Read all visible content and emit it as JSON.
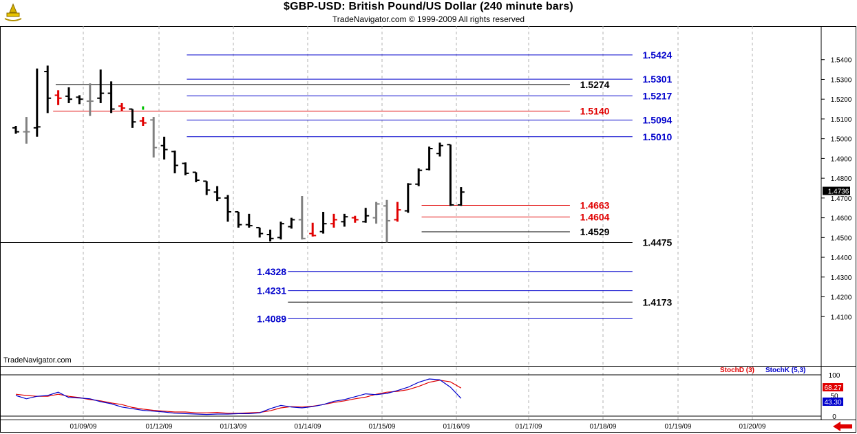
{
  "header": {
    "title": "$GBP-USD:  British Pound/US Dollar  (240 minute bars)",
    "subtitle": "TradeNavigator.com © 1999-2009 All rights reserved"
  },
  "watermark": "TradeNavigator.com",
  "chart_data": [
    {
      "type": "ohlc",
      "ylim": [
        1.403,
        1.55
      ],
      "y_ticks": [
        "1.5400",
        "1.5300",
        "1.5200",
        "1.5100",
        "1.5000",
        "1.4900",
        "1.4800",
        "1.4700",
        "1.4600",
        "1.4500",
        "1.4400",
        "1.4300",
        "1.4200",
        "1.4100"
      ],
      "y_tick_values": [
        1.54,
        1.53,
        1.52,
        1.51,
        1.5,
        1.49,
        1.48,
        1.47,
        1.46,
        1.45,
        1.44,
        1.43,
        1.42,
        1.41
      ],
      "x_labels": [
        "01/09/09",
        "01/12/09",
        "01/13/09",
        "01/14/09",
        "01/15/09",
        "01/16/09",
        "01/17/09",
        "01/18/09",
        "01/19/09",
        "01/20/09"
      ],
      "last_price": "1.4736",
      "colors": {
        "up_down": "#000000",
        "neutral": "#808080",
        "red": "#e00000",
        "green": "#00c000"
      },
      "bars": [
        {
          "o": 1.5055,
          "h": 1.5065,
          "l": 1.5025,
          "c": 1.5035,
          "color": "black"
        },
        {
          "o": 1.5035,
          "h": 1.511,
          "l": 1.4975,
          "c": 1.5035,
          "color": "gray"
        },
        {
          "o": 1.5055,
          "h": 1.5355,
          "l": 1.501,
          "c": 1.506,
          "color": "black"
        },
        {
          "o": 1.534,
          "h": 1.537,
          "l": 1.513,
          "c": 1.5205,
          "color": "black"
        },
        {
          "o": 1.522,
          "h": 1.5245,
          "l": 1.517,
          "c": 1.5205,
          "color": "red"
        },
        {
          "o": 1.5215,
          "h": 1.526,
          "l": 1.518,
          "c": 1.52,
          "color": "black"
        },
        {
          "o": 1.521,
          "h": 1.522,
          "l": 1.5175,
          "c": 1.52,
          "color": "black"
        },
        {
          "o": 1.519,
          "h": 1.528,
          "l": 1.5115,
          "c": 1.519,
          "color": "gray"
        },
        {
          "o": 1.5205,
          "h": 1.535,
          "l": 1.518,
          "c": 1.523,
          "color": "black"
        },
        {
          "o": 1.523,
          "h": 1.529,
          "l": 1.513,
          "c": 1.515,
          "color": "black"
        },
        {
          "o": 1.5165,
          "h": 1.518,
          "l": 1.514,
          "c": 1.5155,
          "color": "red"
        },
        {
          "o": 1.515,
          "h": 1.515,
          "l": 1.5055,
          "c": 1.5085,
          "color": "black"
        },
        {
          "o": 1.509,
          "h": 1.511,
          "l": 1.5065,
          "c": 1.508,
          "color": "red"
        },
        {
          "o": 1.5095,
          "h": 1.511,
          "l": 1.4905,
          "c": 1.4955,
          "color": "gray"
        },
        {
          "o": 1.4965,
          "h": 1.501,
          "l": 1.4895,
          "c": 1.4945,
          "color": "black"
        },
        {
          "o": 1.4935,
          "h": 1.494,
          "l": 1.4825,
          "c": 1.4865,
          "color": "black"
        },
        {
          "o": 1.4875,
          "h": 1.488,
          "l": 1.4815,
          "c": 1.4825,
          "color": "black"
        },
        {
          "o": 1.483,
          "h": 1.483,
          "l": 1.478,
          "c": 1.479,
          "color": "black"
        },
        {
          "o": 1.4785,
          "h": 1.4785,
          "l": 1.4715,
          "c": 1.474,
          "color": "black"
        },
        {
          "o": 1.473,
          "h": 1.476,
          "l": 1.4685,
          "c": 1.47,
          "color": "black"
        },
        {
          "o": 1.47,
          "h": 1.4715,
          "l": 1.458,
          "c": 1.463,
          "color": "black"
        },
        {
          "o": 1.463,
          "h": 1.463,
          "l": 1.455,
          "c": 1.4565,
          "color": "black"
        },
        {
          "o": 1.4565,
          "h": 1.462,
          "l": 1.455,
          "c": 1.456,
          "color": "black"
        },
        {
          "o": 1.455,
          "h": 1.455,
          "l": 1.45,
          "c": 1.452,
          "color": "black"
        },
        {
          "o": 1.4515,
          "h": 1.454,
          "l": 1.448,
          "c": 1.4495,
          "color": "black"
        },
        {
          "o": 1.45,
          "h": 1.458,
          "l": 1.449,
          "c": 1.457,
          "color": "black"
        },
        {
          "o": 1.4555,
          "h": 1.46,
          "l": 1.4545,
          "c": 1.459,
          "color": "black"
        },
        {
          "o": 1.459,
          "h": 1.471,
          "l": 1.449,
          "c": 1.4495,
          "color": "gray"
        },
        {
          "o": 1.452,
          "h": 1.4575,
          "l": 1.4505,
          "c": 1.451,
          "color": "red"
        },
        {
          "o": 1.453,
          "h": 1.463,
          "l": 1.452,
          "c": 1.457,
          "color": "black"
        },
        {
          "o": 1.457,
          "h": 1.462,
          "l": 1.455,
          "c": 1.459,
          "color": "red"
        },
        {
          "o": 1.458,
          "h": 1.462,
          "l": 1.4555,
          "c": 1.4605,
          "color": "black"
        },
        {
          "o": 1.46,
          "h": 1.461,
          "l": 1.4575,
          "c": 1.459,
          "color": "red"
        },
        {
          "o": 1.458,
          "h": 1.465,
          "l": 1.4575,
          "c": 1.461,
          "color": "black"
        },
        {
          "o": 1.46,
          "h": 1.468,
          "l": 1.457,
          "c": 1.467,
          "color": "gray"
        },
        {
          "o": 1.466,
          "h": 1.469,
          "l": 1.4475,
          "c": 1.4585,
          "color": "gray"
        },
        {
          "o": 1.459,
          "h": 1.468,
          "l": 1.458,
          "c": 1.464,
          "color": "red"
        },
        {
          "o": 1.4635,
          "h": 1.4775,
          "l": 1.4625,
          "c": 1.477,
          "color": "black"
        },
        {
          "o": 1.477,
          "h": 1.485,
          "l": 1.476,
          "c": 1.484,
          "color": "black"
        },
        {
          "o": 1.4845,
          "h": 1.496,
          "l": 1.484,
          "c": 1.495,
          "color": "black"
        },
        {
          "o": 1.4925,
          "h": 1.498,
          "l": 1.491,
          "c": 1.4965,
          "color": "black"
        },
        {
          "o": 1.497,
          "h": 1.497,
          "l": 1.466,
          "c": 1.4665,
          "color": "black"
        },
        {
          "o": 1.4665,
          "h": 1.4755,
          "l": 1.466,
          "c": 1.473,
          "color": "black"
        }
      ],
      "levels": [
        {
          "label": "1.5424",
          "value": 1.5424,
          "color": "#0000cc",
          "x0": 0.218,
          "x1": 0.738,
          "lx": 0.745
        },
        {
          "label": "1.5301",
          "value": 1.5301,
          "color": "#0000cc",
          "x0": 0.218,
          "x1": 0.738,
          "lx": 0.745
        },
        {
          "label": "1.5274",
          "value": 1.5274,
          "color": "#000000",
          "x0": 0.065,
          "x1": 0.665,
          "lx": 0.672
        },
        {
          "label": "1.5217",
          "value": 1.5217,
          "color": "#0000cc",
          "x0": 0.218,
          "x1": 0.738,
          "lx": 0.745
        },
        {
          "label": "1.5140",
          "value": 1.514,
          "color": "#e00000",
          "x0": 0.062,
          "x1": 0.665,
          "lx": 0.672
        },
        {
          "label": "1.5094",
          "value": 1.5094,
          "color": "#0000cc",
          "x0": 0.218,
          "x1": 0.738,
          "lx": 0.745
        },
        {
          "label": "1.5010",
          "value": 1.501,
          "color": "#0000cc",
          "x0": 0.218,
          "x1": 0.738,
          "lx": 0.745
        },
        {
          "label": "1.4663",
          "value": 1.4663,
          "color": "#e00000",
          "x0": 0.492,
          "x1": 0.665,
          "lx": 0.672
        },
        {
          "label": "1.4604",
          "value": 1.4604,
          "color": "#e00000",
          "x0": 0.492,
          "x1": 0.665,
          "lx": 0.672
        },
        {
          "label": "1.4529",
          "value": 1.4529,
          "color": "#000000",
          "x0": 0.492,
          "x1": 0.665,
          "lx": 0.672
        },
        {
          "label": "1.4475",
          "value": 1.4475,
          "color": "#000000",
          "x0": 0.0,
          "x1": 0.738,
          "lx": 0.745
        },
        {
          "label": "1.4328",
          "value": 1.4328,
          "color": "#0000cc",
          "x0": 0.336,
          "x1": 0.738,
          "lx": 0.295
        },
        {
          "label": "1.4231",
          "value": 1.4231,
          "color": "#0000cc",
          "x0": 0.336,
          "x1": 0.738,
          "lx": 0.295
        },
        {
          "label": "1.4173",
          "value": 1.4173,
          "color": "#000000",
          "x0": 0.336,
          "x1": 0.738,
          "lx": 0.745
        },
        {
          "label": "1.4089",
          "value": 1.4089,
          "color": "#0000cc",
          "x0": 0.336,
          "x1": 0.738,
          "lx": 0.295
        }
      ]
    },
    {
      "type": "line",
      "title": "",
      "ylim": [
        0,
        100
      ],
      "y_ticks": [
        "100",
        "50",
        "0"
      ],
      "y_tick_values": [
        100,
        50,
        0
      ],
      "series": [
        {
          "name": "StochD (3)",
          "color": "#e00000",
          "last": "68.27",
          "values": [
            53,
            50,
            48,
            48,
            53,
            48,
            45,
            40,
            37,
            32,
            28,
            21,
            17,
            14,
            12,
            10,
            10,
            8,
            8,
            9,
            7,
            7,
            8,
            9,
            13,
            20,
            23,
            22,
            24,
            28,
            33,
            37,
            42,
            46,
            53,
            58,
            60,
            64,
            72,
            82,
            87,
            83,
            68
          ]
        },
        {
          "name": "StochK (5,3)",
          "color": "#0000cc",
          "last": "43.30",
          "values": [
            50,
            42,
            48,
            50,
            58,
            45,
            44,
            42,
            35,
            30,
            22,
            18,
            14,
            12,
            10,
            7,
            6,
            5,
            4,
            5,
            5,
            6,
            6,
            8,
            18,
            26,
            22,
            20,
            23,
            28,
            36,
            40,
            47,
            54,
            52,
            55,
            62,
            70,
            82,
            90,
            88,
            70,
            43
          ]
        }
      ]
    }
  ]
}
